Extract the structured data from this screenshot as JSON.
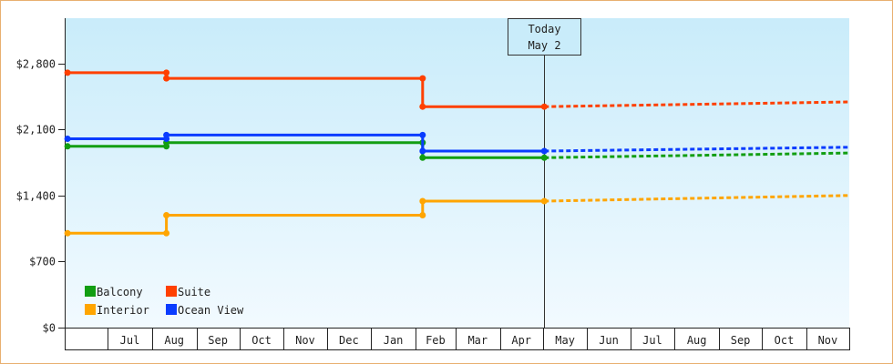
{
  "chart_data": {
    "type": "line",
    "title": "",
    "xlabel": "",
    "ylabel": "",
    "ylim": [
      0,
      2800
    ],
    "y_ticks": [
      {
        "value": 0,
        "label": "$0"
      },
      {
        "value": 700,
        "label": "$700"
      },
      {
        "value": 1400,
        "label": "$1,400"
      },
      {
        "value": 2100,
        "label": "$2,100"
      },
      {
        "value": 2800,
        "label": "$2,800"
      }
    ],
    "x_range": [
      "2024-06-01",
      "2025-12-01"
    ],
    "months": [
      {
        "start": "2024-07-01",
        "label": "Jul"
      },
      {
        "start": "2024-08-01",
        "label": "Aug"
      },
      {
        "start": "2024-09-01",
        "label": "Sep"
      },
      {
        "start": "2024-10-01",
        "label": "Oct"
      },
      {
        "start": "2024-11-01",
        "label": "Nov"
      },
      {
        "start": "2024-12-01",
        "label": "Dec"
      },
      {
        "start": "2025-01-01",
        "label": "Jan"
      },
      {
        "start": "2025-02-01",
        "label": "Feb"
      },
      {
        "start": "2025-03-01",
        "label": "Mar"
      },
      {
        "start": "2025-04-01",
        "label": "Apr"
      },
      {
        "start": "2025-05-01",
        "label": "May"
      },
      {
        "start": "2025-06-01",
        "label": "Jun"
      },
      {
        "start": "2025-07-01",
        "label": "Jul"
      },
      {
        "start": "2025-08-01",
        "label": "Aug"
      },
      {
        "start": "2025-09-01",
        "label": "Sep"
      },
      {
        "start": "2025-10-01",
        "label": "Oct"
      },
      {
        "start": "2025-11-01",
        "label": "Nov"
      }
    ],
    "today": {
      "date": "2025-05-02",
      "line1": "Today",
      "line2": "May 2"
    },
    "grid": false,
    "legend_position": "bottom-left",
    "series": [
      {
        "name": "Balcony",
        "color": "#129e12",
        "history": [
          [
            "2024-06-03",
            1920
          ],
          [
            "2024-08-11",
            1920
          ],
          [
            "2024-08-11",
            1960
          ],
          [
            "2025-02-06",
            1960
          ],
          [
            "2025-02-06",
            1800
          ],
          [
            "2025-05-02",
            1800
          ]
        ],
        "forecast": [
          [
            "2025-05-02",
            1800
          ],
          [
            "2025-12-01",
            1850
          ]
        ]
      },
      {
        "name": "Suite",
        "color": "#ff4000",
        "history": [
          [
            "2024-06-03",
            2700
          ],
          [
            "2024-08-11",
            2700
          ],
          [
            "2024-08-11",
            2640
          ],
          [
            "2025-02-06",
            2640
          ],
          [
            "2025-02-06",
            2340
          ],
          [
            "2025-05-02",
            2340
          ]
        ],
        "forecast": [
          [
            "2025-05-02",
            2340
          ],
          [
            "2025-12-01",
            2390
          ]
        ]
      },
      {
        "name": "Interior",
        "color": "#ffa500",
        "history": [
          [
            "2024-06-03",
            1000
          ],
          [
            "2024-08-11",
            1000
          ],
          [
            "2024-08-11",
            1190
          ],
          [
            "2025-02-06",
            1190
          ],
          [
            "2025-02-06",
            1340
          ],
          [
            "2025-05-02",
            1340
          ]
        ],
        "forecast": [
          [
            "2025-05-02",
            1340
          ],
          [
            "2025-12-01",
            1400
          ]
        ]
      },
      {
        "name": "Ocean View",
        "color": "#0a3cff",
        "history": [
          [
            "2024-06-03",
            2000
          ],
          [
            "2024-08-11",
            2000
          ],
          [
            "2024-08-11",
            2040
          ],
          [
            "2025-02-06",
            2040
          ],
          [
            "2025-02-06",
            1870
          ],
          [
            "2025-05-02",
            1870
          ]
        ],
        "forecast": [
          [
            "2025-05-02",
            1870
          ],
          [
            "2025-12-01",
            1910
          ]
        ]
      }
    ]
  }
}
